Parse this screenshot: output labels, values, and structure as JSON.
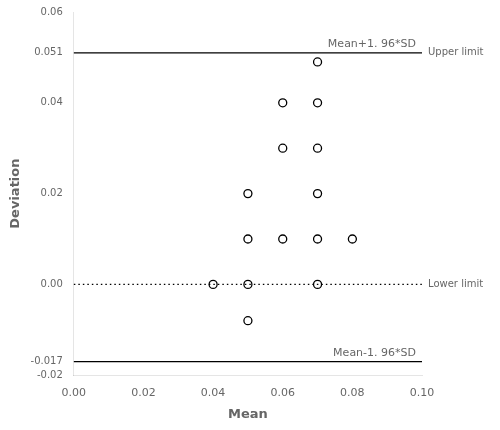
{
  "chart_data": {
    "type": "scatter",
    "x": [
      0.04,
      0.05,
      0.07,
      0.05,
      0.05,
      0.06,
      0.07,
      0.08,
      0.05,
      0.07,
      0.06,
      0.07,
      0.06,
      0.07,
      0.07
    ],
    "values": [
      0.0,
      0.0,
      0.0,
      -0.008,
      0.01,
      0.01,
      0.01,
      0.01,
      0.02,
      0.02,
      0.03,
      0.03,
      0.04,
      0.04,
      0.049
    ],
    "color": "#000000",
    "marker": "open_circle",
    "xlabel": "Mean",
    "ylabel": "Deviation",
    "xlim": [
      0.0,
      0.1
    ],
    "ylim": [
      -0.02,
      0.06
    ],
    "xticks": [
      {
        "value": 0,
        "label": "0.00"
      },
      0.02,
      0.04,
      0.06,
      0.08,
      {
        "value": 0.1,
        "label": "0.10"
      }
    ],
    "yticks": [
      -0.02,
      -0.017,
      {
        "value": 0,
        "label": "0.00"
      },
      0.02,
      0.04,
      0.051,
      0.06
    ],
    "grid": false,
    "reference_lines": [
      {
        "y": 0.051,
        "line_style": "solid",
        "color": "#000000",
        "label": "Mean+1. 96*SD",
        "right_label": "Upper limit"
      },
      {
        "y": -0.017,
        "line_style": "solid",
        "color": "#000000",
        "label": "Mean-1. 96*SD"
      },
      {
        "y": 0.0,
        "line_style": "dotted",
        "color": "#000000",
        "right_label": "Lower limit"
      }
    ],
    "annotation_color": "#666666"
  }
}
